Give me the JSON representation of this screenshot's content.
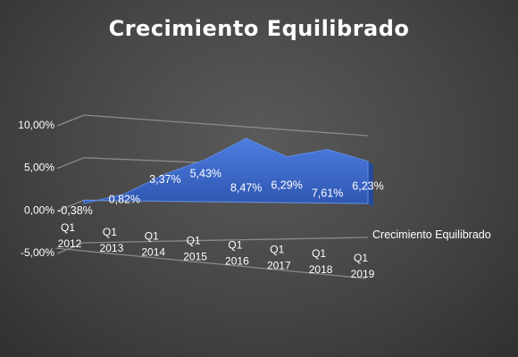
{
  "chart_data": {
    "type": "area",
    "title": "Crecimiento Equilibrado",
    "categories": [
      "Q1 2012",
      "Q1 2013",
      "Q1 2014",
      "Q1 2015",
      "Q1 2016",
      "Q1 2017",
      "Q1 2018",
      "Q1 2019"
    ],
    "category_lines": [
      [
        "Q1",
        "2012"
      ],
      [
        "Q1",
        "2013"
      ],
      [
        "Q1",
        "2014"
      ],
      [
        "Q1",
        "2015"
      ],
      [
        "Q1",
        "2016"
      ],
      [
        "Q1",
        "2017"
      ],
      [
        "Q1",
        "2018"
      ],
      [
        "Q1",
        "2019"
      ]
    ],
    "series": [
      {
        "name": "Crecimiento Equilibrado",
        "values": [
          -0.38,
          0.82,
          3.37,
          5.43,
          8.47,
          6.29,
          7.61,
          6.23
        ],
        "labels": [
          "-0,38%",
          "0,82%",
          "3,37%",
          "5,43%",
          "8,47%",
          "6,29%",
          "7,61%",
          "6,23%"
        ],
        "color": "#3a68c8"
      }
    ],
    "y_ticks": [
      {
        "value": 10,
        "label": "10,00%"
      },
      {
        "value": 5,
        "label": "5,00%"
      },
      {
        "value": 0,
        "label": "0,00%"
      },
      {
        "value": -5,
        "label": "-5,00%"
      }
    ],
    "ylim": [
      -5,
      10
    ],
    "grid": true,
    "view": "3d-perspective"
  }
}
